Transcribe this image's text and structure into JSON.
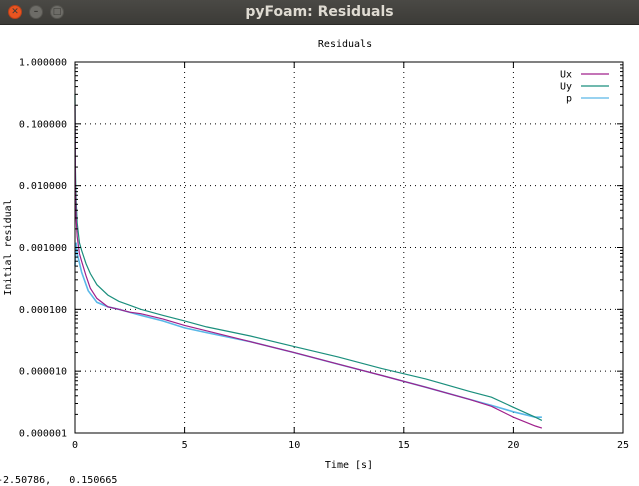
{
  "window": {
    "title": "pyFoam: Residuals"
  },
  "status_bar": {
    "text": "-2.50786,   0.150665"
  },
  "colors": {
    "Ux": "#a0208c",
    "Uy": "#1b8f7d",
    "p": "#5ab8e8"
  },
  "chart_data": {
    "type": "line",
    "title": "Residuals",
    "xlabel": "Time [s]",
    "ylabel": "Initial residual",
    "xlim": [
      0,
      25
    ],
    "ylim": [
      1e-06,
      1.0
    ],
    "yscale": "log",
    "grid": true,
    "legend": "top-right",
    "x_ticks": [
      "0",
      "5",
      "10",
      "15",
      "20",
      "25"
    ],
    "y_ticks": [
      "1.000000",
      "0.100000",
      "0.010000",
      "0.001000",
      "0.000100",
      "0.000010",
      "0.000001"
    ],
    "series": [
      {
        "name": "Ux",
        "x": [
          0.0,
          0.02,
          0.05,
          0.1,
          0.2,
          0.3,
          0.5,
          0.7,
          1.0,
          1.5,
          2.0,
          2.5,
          3.0,
          4.0,
          5.0,
          6.0,
          8.0,
          10.0,
          12.0,
          14.0,
          16.0,
          18.0,
          19.0,
          20.0,
          21.0,
          21.3
        ],
        "y": [
          0.2,
          0.01,
          0.003,
          0.0015,
          0.0008,
          0.0006,
          0.00035,
          0.00022,
          0.00015,
          0.00011,
          0.0001,
          9e-05,
          8.5e-05,
          7e-05,
          5.5e-05,
          4.5e-05,
          3e-05,
          2e-05,
          1.3e-05,
          8.5e-06,
          5.5e-06,
          3.5e-06,
          2.7e-06,
          1.8e-06,
          1.3e-06,
          1.2e-06
        ]
      },
      {
        "name": "Uy",
        "x": [
          0.0,
          0.02,
          0.05,
          0.1,
          0.2,
          0.3,
          0.5,
          0.7,
          1.0,
          1.5,
          2.0,
          3.0,
          4.0,
          5.0,
          6.0,
          8.0,
          10.0,
          12.0,
          14.0,
          16.0,
          18.0,
          19.0,
          20.0,
          21.0,
          21.3
        ],
        "y": [
          0.3,
          0.02,
          0.006,
          0.0025,
          0.0012,
          0.0009,
          0.00055,
          0.00038,
          0.00025,
          0.00017,
          0.000135,
          0.0001,
          8e-05,
          6.5e-05,
          5.2e-05,
          3.7e-05,
          2.5e-05,
          1.7e-05,
          1.1e-05,
          7.5e-06,
          4.7e-06,
          3.8e-06,
          2.6e-06,
          1.8e-06,
          1.6e-06
        ]
      },
      {
        "name": "p",
        "x": [
          0.0,
          0.05,
          0.1,
          0.3,
          0.6,
          1.0,
          1.5,
          2.0,
          3.0,
          4.0,
          5.0,
          6.0,
          8.0,
          10.0,
          12.0,
          14.0,
          16.0,
          18.0,
          19.0,
          20.0,
          21.0,
          21.3
        ],
        "y": [
          0.0005,
          0.0012,
          0.0008,
          0.0004,
          0.0002,
          0.00013,
          0.00011,
          0.0001,
          8e-05,
          6.5e-05,
          5e-05,
          4.2e-05,
          3e-05,
          2e-05,
          1.3e-05,
          8.5e-06,
          5.5e-06,
          3.5e-06,
          2.8e-06,
          2.2e-06,
          1.8e-06,
          1.8e-06
        ]
      }
    ]
  }
}
